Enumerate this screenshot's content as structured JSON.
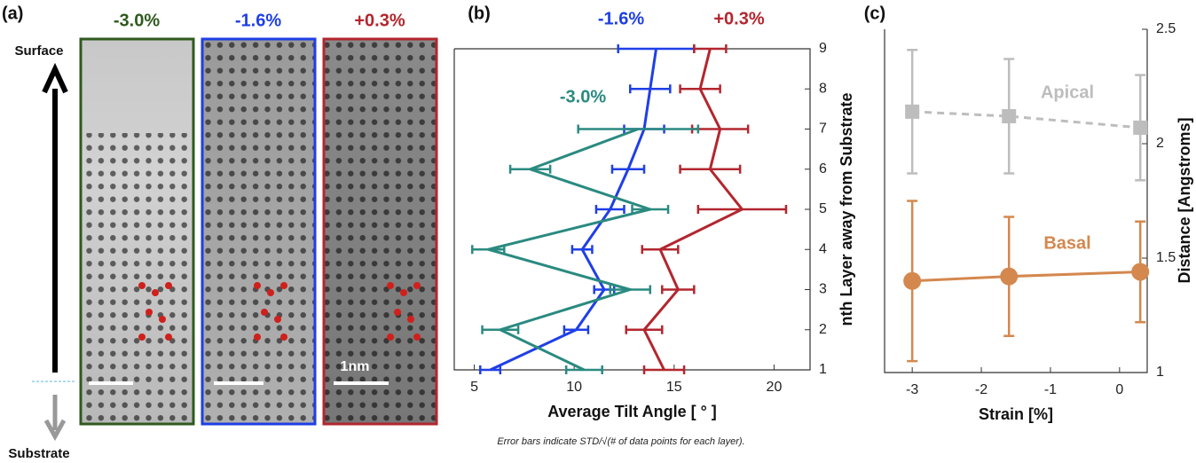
{
  "panel_a": {
    "label": "(a)",
    "strains": [
      "-3.0%",
      "-1.6%",
      "+0.3%"
    ],
    "top_label": "Surface",
    "bottom_label": "Substrate",
    "scale_bar": "1nm"
  },
  "chart_data": [
    {
      "type": "line",
      "orientation": "horizontal",
      "label": "(b)",
      "xlabel": "Average Tilt Angle [ ° ]",
      "ylabel": "nth Layer away from Substrate",
      "note": "Error bars indicate STD/√(# of data points for each layer).",
      "y": [
        1,
        2,
        3,
        4,
        5,
        6,
        7,
        8,
        9
      ],
      "xlim": [
        4,
        21.8
      ],
      "xticks": [
        5,
        10,
        15,
        20
      ],
      "ylim": [
        1,
        9
      ],
      "yticks": [
        1,
        2,
        3,
        4,
        5,
        6,
        7,
        8,
        9
      ],
      "series": [
        {
          "name": "-1.6%",
          "color": "#1f3fe6",
          "values": [
            5.8,
            10.1,
            11.5,
            10.4,
            11.8,
            12.7,
            13.5,
            13.8,
            14.1
          ],
          "errors": [
            0.5,
            0.6,
            0.5,
            0.5,
            0.7,
            0.8,
            1.0,
            1.0,
            1.9
          ]
        },
        {
          "name": "+0.3%",
          "color": "#b3262e",
          "values": [
            14.5,
            13.5,
            15.2,
            14.3,
            18.4,
            16.8,
            17.3,
            16.3,
            16.8
          ],
          "errors": [
            1.0,
            0.9,
            0.8,
            0.9,
            2.2,
            1.5,
            1.4,
            1.0,
            0.8
          ]
        },
        {
          "name": "-3.0%",
          "color": "#2a8a80",
          "values": [
            10.5,
            6.3,
            12.8,
            5.7,
            13.8,
            7.8,
            13.2,
            null,
            null
          ],
          "errors": [
            0.9,
            0.9,
            1.0,
            0.8,
            0.9,
            1.0,
            3.0,
            null,
            null
          ]
        }
      ]
    },
    {
      "type": "line",
      "label": "(c)",
      "xlabel": "Strain [%]",
      "ylabel": "Distance [Angstroms]",
      "x": [
        -3,
        -1.6,
        0.3
      ],
      "xlim": [
        -3.4,
        0.4
      ],
      "xticks": [
        -3,
        -2,
        -1,
        0
      ],
      "ylim": [
        1,
        2.5
      ],
      "yticks": [
        1,
        1.5,
        2,
        2.5
      ],
      "series": [
        {
          "name": "Apical",
          "color": "#bdbdbd",
          "dash": true,
          "marker": "square",
          "values": [
            2.14,
            2.12,
            2.07
          ],
          "errors": [
            0.27,
            0.25,
            0.23
          ]
        },
        {
          "name": "Basal",
          "color": "#d4884e",
          "dash": false,
          "marker": "circle",
          "values": [
            1.4,
            1.42,
            1.44
          ],
          "errors": [
            0.35,
            0.26,
            0.22
          ]
        }
      ]
    }
  ]
}
